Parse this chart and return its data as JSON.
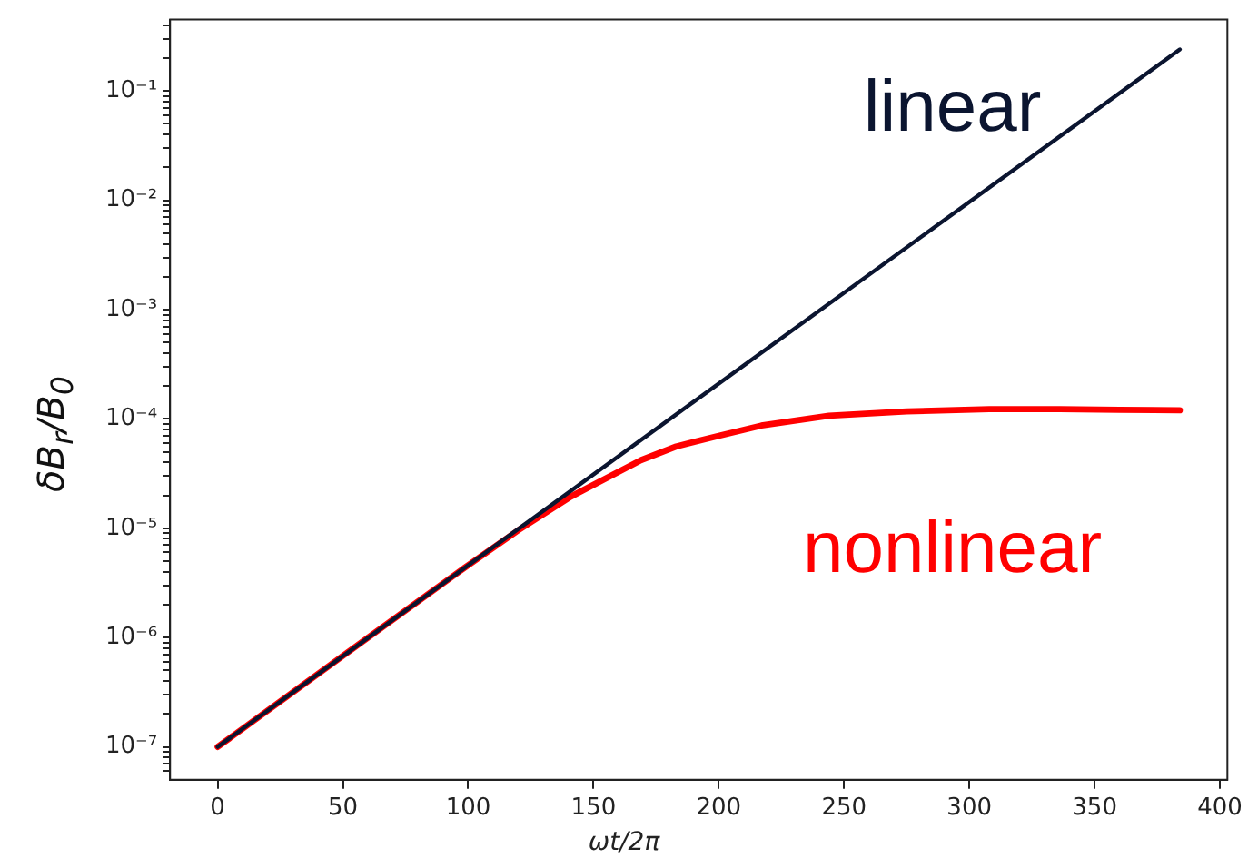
{
  "chart_data": {
    "type": "line",
    "xlabel": "ωt/2π",
    "ylabel": "δB$_{r}$/B$_{0}$",
    "log": "y",
    "grid": false,
    "legend": false,
    "marker": "none",
    "line_style": "solid",
    "xlim": [
      -19,
      403
    ],
    "xticks": [
      0,
      50,
      100,
      150,
      200,
      250,
      300,
      350,
      400
    ],
    "ylim": [
      5e-08,
      0.45
    ],
    "yticks": [
      {
        "value": 6e-08,
        "label": null
      },
      {
        "value": 7e-08,
        "label": null
      },
      {
        "value": 8e-08,
        "label": null
      },
      {
        "value": 9e-08,
        "label": null
      },
      {
        "value": 1e-07,
        "label": "10⁻⁷"
      },
      {
        "value": 2e-07,
        "label": null
      },
      {
        "value": 3e-07,
        "label": null
      },
      {
        "value": 4e-07,
        "label": null
      },
      {
        "value": 5e-07,
        "label": null
      },
      {
        "value": 6e-07,
        "label": null
      },
      {
        "value": 7e-07,
        "label": null
      },
      {
        "value": 8e-07,
        "label": null
      },
      {
        "value": 9e-07,
        "label": null
      },
      {
        "value": 1e-06,
        "label": "10⁻⁶"
      },
      {
        "value": 2e-06,
        "label": null
      },
      {
        "value": 3e-06,
        "label": null
      },
      {
        "value": 4e-06,
        "label": null
      },
      {
        "value": 5e-06,
        "label": null
      },
      {
        "value": 6e-06,
        "label": null
      },
      {
        "value": 7e-06,
        "label": null
      },
      {
        "value": 8e-06,
        "label": null
      },
      {
        "value": 9e-06,
        "label": null
      },
      {
        "value": 1e-05,
        "label": "10⁻⁵"
      },
      {
        "value": 2e-05,
        "label": null
      },
      {
        "value": 3e-05,
        "label": null
      },
      {
        "value": 4e-05,
        "label": null
      },
      {
        "value": 5e-05,
        "label": null
      },
      {
        "value": 6e-05,
        "label": null
      },
      {
        "value": 7e-05,
        "label": null
      },
      {
        "value": 8e-05,
        "label": null
      },
      {
        "value": 9e-05,
        "label": null
      },
      {
        "value": 0.0001,
        "label": "10⁻⁴"
      },
      {
        "value": 0.0002,
        "label": null
      },
      {
        "value": 0.0003,
        "label": null
      },
      {
        "value": 0.0004,
        "label": null
      },
      {
        "value": 0.0005,
        "label": null
      },
      {
        "value": 0.0006,
        "label": null
      },
      {
        "value": 0.0007,
        "label": null
      },
      {
        "value": 0.0008,
        "label": null
      },
      {
        "value": 0.0009,
        "label": null
      },
      {
        "value": 0.001,
        "label": "10⁻³"
      },
      {
        "value": 0.002,
        "label": null
      },
      {
        "value": 0.003,
        "label": null
      },
      {
        "value": 0.004,
        "label": null
      },
      {
        "value": 0.005,
        "label": null
      },
      {
        "value": 0.006,
        "label": null
      },
      {
        "value": 0.007,
        "label": null
      },
      {
        "value": 0.008,
        "label": null
      },
      {
        "value": 0.009,
        "label": null
      },
      {
        "value": 0.01,
        "label": "10⁻²"
      },
      {
        "value": 0.02,
        "label": null
      },
      {
        "value": 0.03,
        "label": null
      },
      {
        "value": 0.04,
        "label": null
      },
      {
        "value": 0.05,
        "label": null
      },
      {
        "value": 0.06,
        "label": null
      },
      {
        "value": 0.07,
        "label": null
      },
      {
        "value": 0.08,
        "label": null
      },
      {
        "value": 0.09,
        "label": null
      },
      {
        "value": 0.1,
        "label": "10⁻¹"
      },
      {
        "value": 0.2,
        "label": null
      },
      {
        "value": 0.3,
        "label": null
      },
      {
        "value": 0.4,
        "label": null
      }
    ],
    "series": [
      {
        "name": "linear",
        "color": "#0b1530",
        "x": [
          0,
          384
        ],
        "values": [
          1e-07,
          0.24
        ]
      },
      {
        "name": "nonlinear",
        "color": "#ff0000",
        "x": [
          0,
          50,
          100,
          120,
          141,
          169,
          183,
          200,
          217,
          244,
          275,
          308,
          336,
          360,
          384
        ],
        "values": [
          1e-07,
          6.8e-07,
          4.6e-06,
          9.6e-06,
          1.95e-05,
          4.2e-05,
          5.6e-05,
          7e-05,
          8.7e-05,
          0.000107,
          0.000117,
          0.000123,
          0.000123,
          0.000121,
          0.00012
        ]
      }
    ]
  }
}
